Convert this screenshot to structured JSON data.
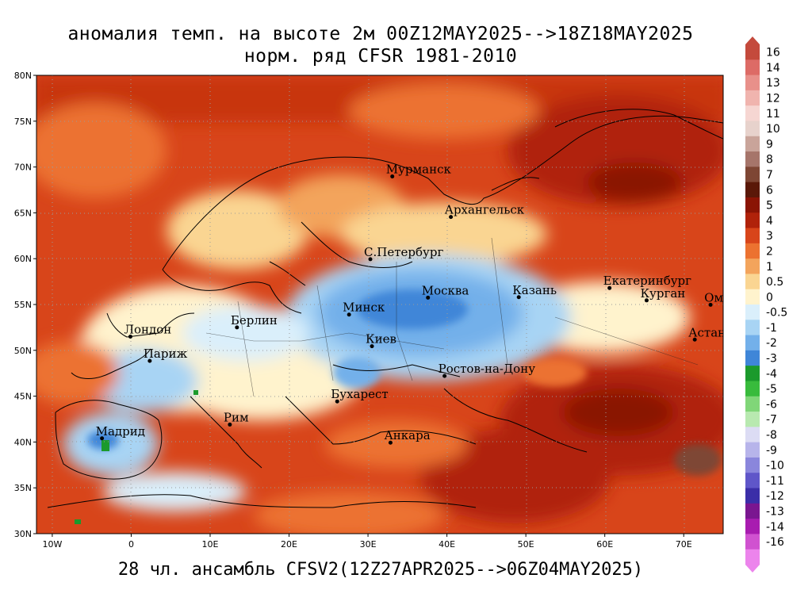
{
  "title_line1": "аномалия темп. на высоте 2м 00Z12MAY2025-->18Z18MAY2025",
  "title_line2": "норм. ряд CFSR 1981-2010",
  "footer": "28 чл. ансамбль CFSV2(12Z27APR2025-->06Z04MAY2025)",
  "lat_labels": [
    "80N",
    "75N",
    "70N",
    "65N",
    "60N",
    "55N",
    "50N",
    "45N",
    "40N",
    "35N",
    "30N"
  ],
  "lon_labels": [
    "10W",
    "0",
    "10E",
    "20E",
    "30E",
    "40E",
    "50E",
    "60E",
    "70E"
  ],
  "colorbar": {
    "labels": [
      "16",
      "14",
      "13",
      "12",
      "11",
      "10",
      "9",
      "8",
      "7",
      "6",
      "5",
      "4",
      "3",
      "2",
      "1",
      "0.5",
      "0",
      "-0.5",
      "-1",
      "-2",
      "-3",
      "-4",
      "-5",
      "-6",
      "-7",
      "-8",
      "-9",
      "-10",
      "-11",
      "-12",
      "-13",
      "-14",
      "-16"
    ],
    "colors": [
      "#c44a3c",
      "#dd6b66",
      "#e8908a",
      "#f0b4ae",
      "#f6d6d2",
      "#e7d2cc",
      "#c9a49a",
      "#a6756a",
      "#7e4634",
      "#5a1808",
      "#8a1404",
      "#b0220a",
      "#d8451a",
      "#ec7230",
      "#f3a45c",
      "#fad592",
      "#fff3cd",
      "#daeffb",
      "#a8d4f4",
      "#73b0ea",
      "#3f86d8",
      "#1b9a2c",
      "#38bb3c",
      "#80d678",
      "#b8e9b0",
      "#dcdcf4",
      "#b7b4ea",
      "#8a86dc",
      "#5f56c9",
      "#3b2ea8",
      "#7a1690",
      "#a81cb0",
      "#d052d0",
      "#ec84ec"
    ]
  },
  "cities": [
    {
      "name": "Мурманск",
      "lat": 68.97,
      "lon": 33.08
    },
    {
      "name": "Архангельск",
      "lat": 64.55,
      "lon": 40.5
    },
    {
      "name": "С.Петербург",
      "lat": 59.94,
      "lon": 30.3
    },
    {
      "name": "Москва",
      "lat": 55.75,
      "lon": 37.6
    },
    {
      "name": "Казань",
      "lat": 55.8,
      "lon": 49.1
    },
    {
      "name": "Екатеринбург",
      "lat": 56.8,
      "lon": 60.6
    },
    {
      "name": "Курган",
      "lat": 55.45,
      "lon": 65.3
    },
    {
      "name": "Омск",
      "lat": 54.97,
      "lon": 73.4
    },
    {
      "name": "Астана",
      "lat": 51.17,
      "lon": 71.4
    },
    {
      "name": "Минск",
      "lat": 53.9,
      "lon": 27.6
    },
    {
      "name": "Берлин",
      "lat": 52.5,
      "lon": 13.4
    },
    {
      "name": "Лондон",
      "lat": 51.5,
      "lon": -0.1
    },
    {
      "name": "Париж",
      "lat": 48.85,
      "lon": 2.35
    },
    {
      "name": "Киев",
      "lat": 50.45,
      "lon": 30.5
    },
    {
      "name": "Ростов-на-Дону",
      "lat": 47.2,
      "lon": 39.7
    },
    {
      "name": "Бухарест",
      "lat": 44.43,
      "lon": 26.1
    },
    {
      "name": "Рим",
      "lat": 41.9,
      "lon": 12.5
    },
    {
      "name": "Мадрид",
      "lat": 40.4,
      "lon": -3.7
    },
    {
      "name": "Анкара",
      "lat": 39.93,
      "lon": 32.85
    }
  ]
}
